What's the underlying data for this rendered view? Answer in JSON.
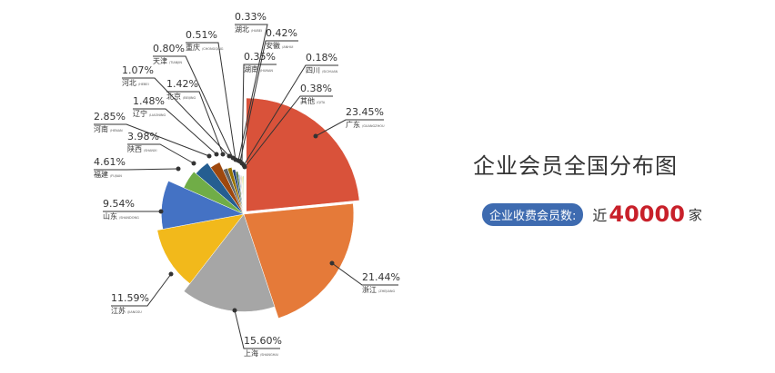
{
  "chart_data": {
    "type": "pie",
    "variant": "rose-radius",
    "title": "企业会员全国分布图",
    "slices": [
      {
        "name": "广东",
        "pinyin": "GUANGZHOU",
        "value": 23.45,
        "label": "23.45%",
        "color": "#d9523a"
      },
      {
        "name": "浙江",
        "pinyin": "ZHEJIANG",
        "value": 21.44,
        "label": "21.44%",
        "color": "#e57a39"
      },
      {
        "name": "上海",
        "pinyin": "SHANGHAI",
        "value": 15.6,
        "label": "15.60%",
        "color": "#a6a6a6"
      },
      {
        "name": "江苏",
        "pinyin": "JIANGSU",
        "value": 11.59,
        "label": "11.59%",
        "color": "#f2b91b"
      },
      {
        "name": "山东",
        "pinyin": "SHANDONG",
        "value": 9.54,
        "label": "9.54%",
        "color": "#4472c4"
      },
      {
        "name": "福建",
        "pinyin": "FUJIAN",
        "value": 4.61,
        "label": "4.61%",
        "color": "#70ad47"
      },
      {
        "name": "陕西",
        "pinyin": "SHANXI",
        "value": 3.98,
        "label": "3.98%",
        "color": "#255e91"
      },
      {
        "name": "河南",
        "pinyin": "HENAN",
        "value": 2.85,
        "label": "2.85%",
        "color": "#9e480e"
      },
      {
        "name": "辽宁",
        "pinyin": "LIAONING",
        "value": 1.48,
        "label": "1.48%",
        "color": "#636363"
      },
      {
        "name": "北京",
        "pinyin": "BEIJING",
        "value": 1.42,
        "label": "1.42%",
        "color": "#997300"
      },
      {
        "name": "河北",
        "pinyin": "HEBEI",
        "value": 1.07,
        "label": "1.07%",
        "color": "#264478"
      },
      {
        "name": "天津",
        "pinyin": "TIANJIN",
        "value": 0.8,
        "label": "0.80%",
        "color": "#43682b"
      },
      {
        "name": "重庆",
        "pinyin": "CHONGQING",
        "value": 0.51,
        "label": "0.51%",
        "color": "#698ed0"
      },
      {
        "name": "湖北",
        "pinyin": "HUBEI",
        "value": 0.33,
        "label": "0.33%",
        "color": "#f1975a"
      },
      {
        "name": "安徽",
        "pinyin": "ANHUI",
        "value": 0.42,
        "label": "0.42%",
        "color": "#b7b7b7"
      },
      {
        "name": "湖南",
        "pinyin": "HUNAN",
        "value": 0.35,
        "label": "0.35%",
        "color": "#ffcd33"
      },
      {
        "name": "四川",
        "pinyin": "SICHUAN",
        "value": 0.18,
        "label": "0.18%",
        "color": "#5b9bd5"
      },
      {
        "name": "其他",
        "pinyin": "QITA",
        "value": 0.38,
        "label": "0.38%",
        "color": "#8cc168"
      }
    ]
  },
  "summary": {
    "badge": "企业收费会员数:",
    "prefix": "近",
    "count": "40000",
    "unit": "家"
  }
}
